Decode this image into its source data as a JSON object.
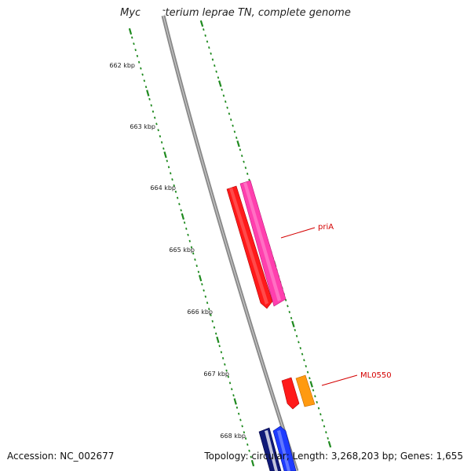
{
  "title": "Mycobacterium leprae TN, complete genome",
  "footer": {
    "accession": "Accession: NC_002677",
    "summary": "Topology: circular; Length: 3,268,203 bp; Genes: 1,655"
  },
  "scale": {
    "unit": "kbp",
    "ticks": [
      {
        "label": "662 kbp"
      },
      {
        "label": "663 kbp"
      },
      {
        "label": "664 kbp"
      },
      {
        "label": "665 kbp"
      },
      {
        "label": "666 kbp"
      },
      {
        "label": "667 kbp"
      },
      {
        "label": "668 kbp"
      }
    ]
  },
  "genes": [
    {
      "label": "priA"
    },
    {
      "label": "ML0550"
    }
  ],
  "colors": {
    "backbone": "#8a8a8a",
    "tick": "#1f8a1f",
    "gene_red": "#ff1a1a",
    "gene_pink": "#ff3fae",
    "gene_orange": "#ff9a10",
    "gene_navy": "#101a78",
    "gene_blue": "#1f3cff",
    "label": "#d40000"
  }
}
